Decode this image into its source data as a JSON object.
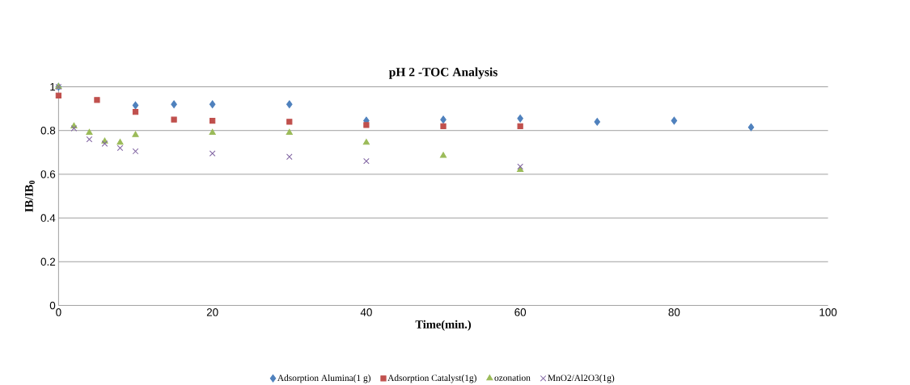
{
  "chart_data": {
    "type": "scatter",
    "title": "pH 2 -TOC Analysis",
    "xlabel": "Time(min.)",
    "ylabel": "IB/IB$_{0}$",
    "xlim": [
      0,
      100
    ],
    "xticks": [
      0,
      20,
      40,
      60,
      80,
      100
    ],
    "ylim": [
      0,
      1.0
    ],
    "yticks": [
      0,
      0.2,
      0.4,
      0.6,
      0.8,
      1
    ],
    "grid": "y",
    "legend": "bottom",
    "series": [
      {
        "name": "Adsorption Alumina(1 g)",
        "color": "#4f81bd",
        "marker": "diamond",
        "x": [
          0,
          10,
          15,
          20,
          30,
          40,
          50,
          60,
          70,
          80,
          90
        ],
        "values": [
          1.0,
          0.915,
          0.92,
          0.92,
          0.92,
          0.845,
          0.85,
          0.855,
          0.84,
          0.845,
          0.815
        ]
      },
      {
        "name": "Adsorption Catalyst(1g)",
        "color": "#c0504d",
        "marker": "square",
        "x": [
          0,
          5,
          10,
          15,
          20,
          30,
          40,
          50,
          60
        ],
        "values": [
          0.96,
          0.94,
          0.885,
          0.85,
          0.845,
          0.84,
          0.825,
          0.82,
          0.82
        ]
      },
      {
        "name": "ozonation",
        "color": "#9bbb59",
        "marker": "triangle",
        "x": [
          0,
          2,
          4,
          6,
          8,
          10,
          20,
          30,
          40,
          50,
          60
        ],
        "values": [
          1.0,
          0.82,
          0.79,
          0.75,
          0.745,
          0.78,
          0.79,
          0.79,
          0.745,
          0.685,
          0.62
        ]
      },
      {
        "name": "MnO2/Al2O3(1g)",
        "color": "#8064a2",
        "marker": "cross",
        "x": [
          0,
          2,
          4,
          6,
          8,
          10,
          20,
          30,
          40,
          60
        ],
        "values": [
          1.0,
          0.81,
          0.76,
          0.74,
          0.72,
          0.705,
          0.695,
          0.68,
          0.66,
          0.635
        ]
      }
    ]
  }
}
